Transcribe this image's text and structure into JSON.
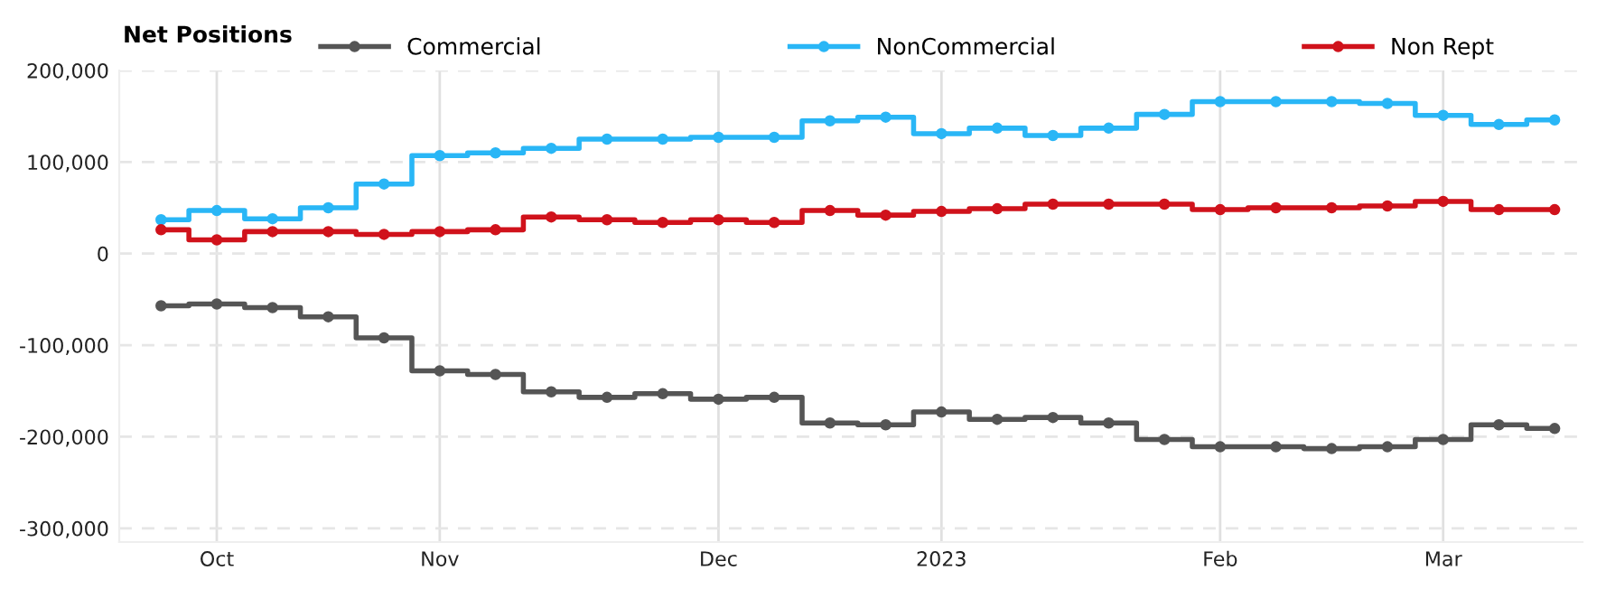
{
  "chart_data": {
    "type": "step",
    "legend_title": "Net Positions",
    "categories": [
      null,
      "Oct",
      null,
      null,
      null,
      "Nov",
      null,
      null,
      null,
      null,
      "Dec",
      null,
      null,
      null,
      "2023",
      null,
      null,
      null,
      null,
      "Feb",
      null,
      null,
      null,
      "Mar",
      null,
      null
    ],
    "series": [
      {
        "name": "Commercial",
        "color": "#555555",
        "values": [
          -57000,
          -55000,
          -59000,
          -69000,
          -92000,
          -128000,
          -132000,
          -151000,
          -157000,
          -153000,
          -159000,
          -157000,
          -185000,
          -187000,
          -173000,
          -181000,
          -179000,
          -185000,
          -203000,
          -211000,
          -211000,
          -213000,
          -211000,
          -203000,
          -187000,
          -191000
        ]
      },
      {
        "name": "NonCommercial",
        "color": "#29b6f6",
        "values": [
          37000,
          47000,
          38000,
          50000,
          76000,
          107000,
          110000,
          115000,
          125000,
          125000,
          127000,
          127000,
          145000,
          149000,
          131000,
          137000,
          129000,
          137000,
          152000,
          166000,
          166000,
          166000,
          164000,
          151000,
          141000,
          146000
        ]
      },
      {
        "name": "Non Rept",
        "color": "#d0121b",
        "values": [
          26000,
          15000,
          24000,
          24000,
          21000,
          24000,
          26000,
          40000,
          37000,
          34000,
          37000,
          34000,
          47000,
          42000,
          46000,
          49000,
          54000,
          54000,
          54000,
          48000,
          50000,
          50000,
          52000,
          57000,
          48000,
          48000
        ]
      }
    ],
    "ylim": [
      -315000,
      200000
    ],
    "yticks": [
      {
        "value": -300000,
        "label": "-300,000"
      },
      {
        "value": -200000,
        "label": "-200,000"
      },
      {
        "value": -100000,
        "label": "-100,000"
      },
      0,
      {
        "value": 100000,
        "label": "100,000"
      },
      {
        "value": 200000,
        "label": "200,000"
      }
    ],
    "grid": true,
    "legend": "top left",
    "marker": "circle",
    "line_style": "solid"
  }
}
